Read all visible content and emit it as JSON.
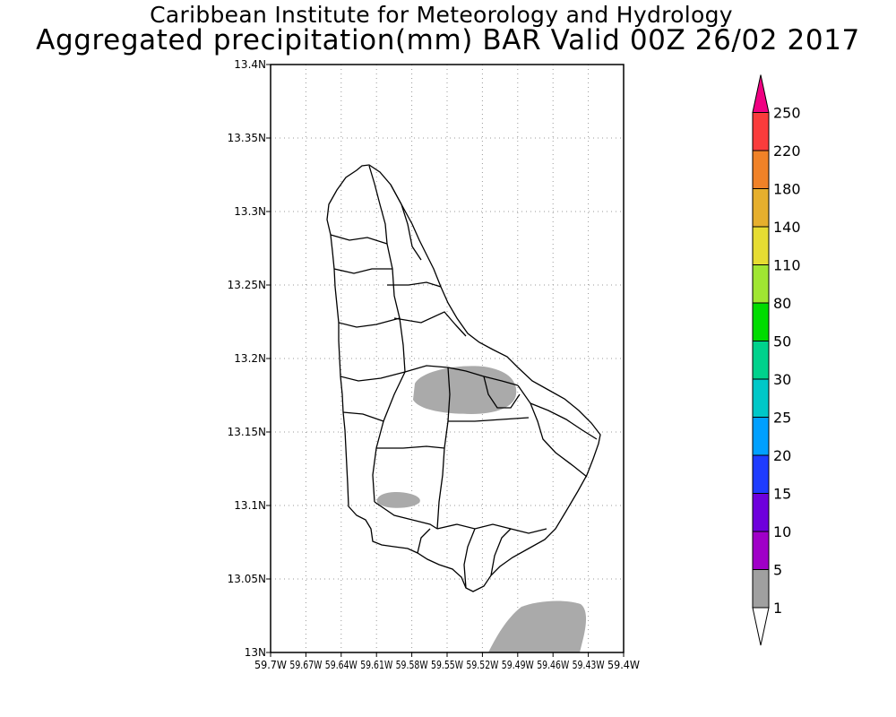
{
  "header": {
    "title": "Caribbean Institute for Meteorology and Hydrology",
    "subtitle": "Aggregated precipitation(mm) BAR Valid 00Z 26/02 2017"
  },
  "map": {
    "lat_ticks": [
      "13N",
      "13.05N",
      "13.1N",
      "13.15N",
      "13.2N",
      "13.25N",
      "13.3N",
      "13.35N",
      "13.4N"
    ],
    "lon_ticks": [
      "59.7W",
      "59.67W",
      "59.64W",
      "59.61W",
      "59.58W",
      "59.55W",
      "59.52W",
      "59.49W",
      "59.46W",
      "59.43W",
      "59.4W"
    ],
    "grid": true,
    "region": "Barbados",
    "precip_fill_color": "#aaaaaa"
  },
  "legend": {
    "labels": [
      "1",
      "5",
      "10",
      "15",
      "20",
      "25",
      "30",
      "50",
      "80",
      "110",
      "140",
      "180",
      "220",
      "250"
    ],
    "colors": [
      "#a0a0a0",
      "#a000c8",
      "#6e00dc",
      "#1e3cff",
      "#00a0ff",
      "#00c8c8",
      "#00d28c",
      "#00dc00",
      "#a0e632",
      "#e6dc32",
      "#e6af2d",
      "#f08228",
      "#fa3c3c",
      "#f00082"
    ],
    "position": "right"
  }
}
